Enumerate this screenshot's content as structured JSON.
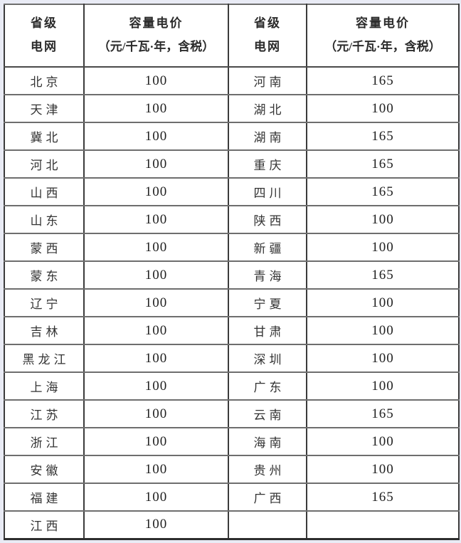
{
  "table": {
    "title_semantic": "capacity-electricity-price-table",
    "headers": [
      {
        "line1": "省级",
        "line2": "电网"
      },
      {
        "line1": "容量电价",
        "line2": "（元/千瓦·年，含税）"
      },
      {
        "line1": "省级",
        "line2": "电网"
      },
      {
        "line1": "容量电价",
        "line2": "（元/千瓦·年，含税）"
      }
    ],
    "rows": [
      [
        "北京",
        "100",
        "河南",
        "165"
      ],
      [
        "天津",
        "100",
        "湖北",
        "100"
      ],
      [
        "冀北",
        "100",
        "湖南",
        "165"
      ],
      [
        "河北",
        "100",
        "重庆",
        "165"
      ],
      [
        "山西",
        "100",
        "四川",
        "165"
      ],
      [
        "山东",
        "100",
        "陕西",
        "100"
      ],
      [
        "蒙西",
        "100",
        "新疆",
        "100"
      ],
      [
        "蒙东",
        "100",
        "青海",
        "165"
      ],
      [
        "辽宁",
        "100",
        "宁夏",
        "100"
      ],
      [
        "吉林",
        "100",
        "甘肃",
        "100"
      ],
      [
        "黑龙江",
        "100",
        "深圳",
        "100"
      ],
      [
        "上海",
        "100",
        "广东",
        "100"
      ],
      [
        "江苏",
        "100",
        "云南",
        "165"
      ],
      [
        "浙江",
        "100",
        "海南",
        "100"
      ],
      [
        "安徽",
        "100",
        "贵州",
        "100"
      ],
      [
        "福建",
        "100",
        "广西",
        "165"
      ],
      [
        "江西",
        "100",
        "",
        ""
      ]
    ]
  },
  "colors": {
    "page_background": "#e9ebf5",
    "cell_background": "#ffffff",
    "outer_border": "#2d2d2d",
    "vertical_border": "#3b3b3b",
    "horizontal_border": "#6e6e6e",
    "header_text": "#2b2b2b",
    "body_text": "#333333",
    "number_text": "#1f1f1f"
  }
}
